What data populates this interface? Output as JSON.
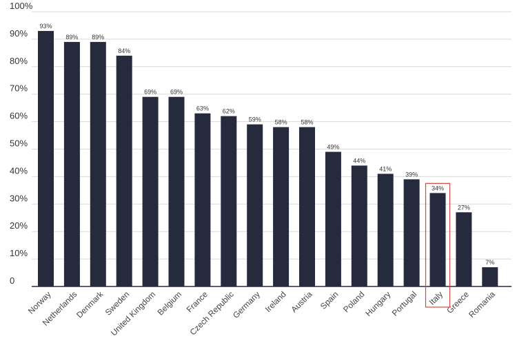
{
  "chart_data": {
    "type": "bar",
    "categories": [
      "Norway",
      "Netherlands",
      "Denmark",
      "Sweden",
      "United Kingdom",
      "Belgium",
      "France",
      "Czech Republic",
      "Germany",
      "Ireland",
      "Austria",
      "Spain",
      "Poland",
      "Hungary",
      "Portugal",
      "Italy",
      "Greece",
      "Romania"
    ],
    "values": [
      93,
      89,
      89,
      84,
      69,
      69,
      63,
      62,
      59,
      58,
      58,
      49,
      44,
      41,
      39,
      34,
      27,
      7
    ],
    "data_labels": [
      "93%",
      "89%",
      "89%",
      "84%",
      "69%",
      "69%",
      "63%",
      "62%",
      "59%",
      "58%",
      "58%",
      "49%",
      "44%",
      "41%",
      "39%",
      "34%",
      "27%",
      "7%"
    ],
    "y_ticks": [
      0,
      10,
      20,
      30,
      40,
      50,
      60,
      70,
      80,
      90,
      100
    ],
    "y_tick_labels": [
      "0",
      "10%",
      "20%",
      "30%",
      "40%",
      "50%",
      "60%",
      "70%",
      "80%",
      "90%",
      "100%"
    ],
    "ylim": [
      0,
      100
    ],
    "grid": true,
    "highlighted_category": "Italy",
    "colors": {
      "bar": "#262a3d",
      "highlight_box": "#d9453f",
      "grid": "#d9d9d9"
    }
  }
}
